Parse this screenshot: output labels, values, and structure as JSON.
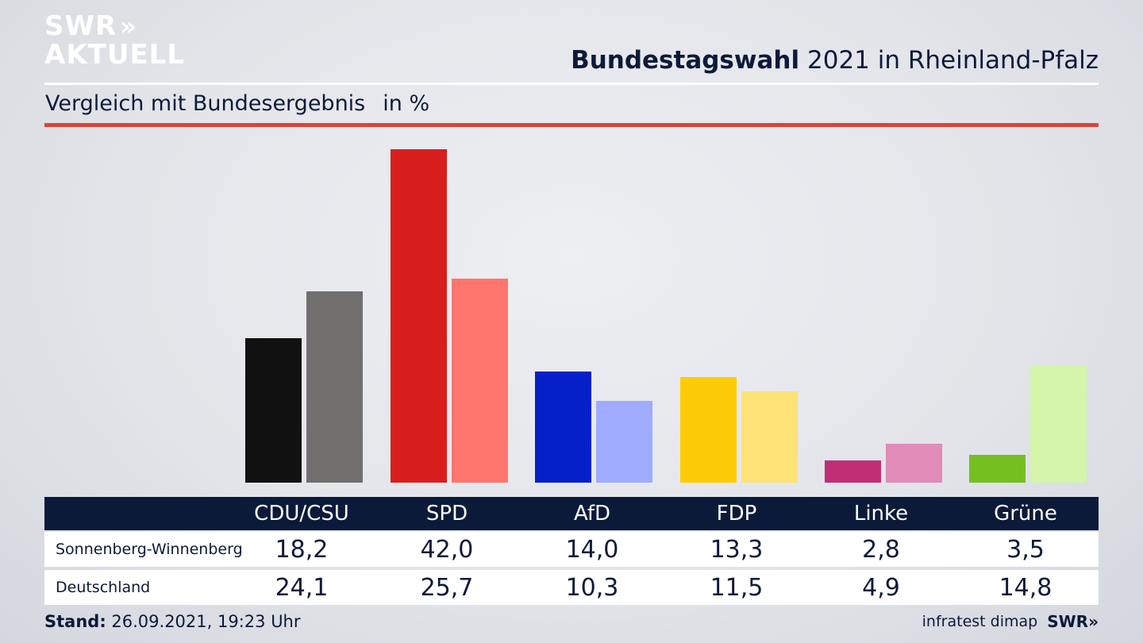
{
  "logo": {
    "line1": "SWR",
    "chevrons": "»",
    "line2": "AKTUELL"
  },
  "header": {
    "title_bold": "Bundestagswahl",
    "title_rest": "2021 in Rheinland-Pfalz"
  },
  "subtitle": {
    "text": "Vergleich mit Bundesergebnis",
    "unit": "in %"
  },
  "colors": {
    "primary": [
      "#111111",
      "#d91e1e",
      "#0520c9",
      "#fdcc07",
      "#c12e76",
      "#76bf21"
    ],
    "secondary": [
      "#716f6d",
      "#ff766f",
      "#9eabff",
      "#fde276",
      "#e08bb8",
      "#d4f5aa"
    ],
    "table_header": "#0c1a3a",
    "accent_rule": "#d9453a"
  },
  "chart_data": {
    "type": "bar",
    "title": "Bundestagswahl 2021 in Rheinland-Pfalz",
    "subtitle": "Vergleich mit Bundesergebnis",
    "ylabel": "in %",
    "categories": [
      "CDU/CSU",
      "SPD",
      "AfD",
      "FDP",
      "Linke",
      "Grüne"
    ],
    "series": [
      {
        "name": "Sonnenberg-Winnenberg",
        "values": [
          18.2,
          42.0,
          14.0,
          13.3,
          2.8,
          3.5
        ]
      },
      {
        "name": "Deutschland",
        "values": [
          24.1,
          25.7,
          10.3,
          11.5,
          4.9,
          14.8
        ]
      }
    ],
    "ylim": [
      0,
      42.0
    ],
    "grid": false,
    "legend": "table-below"
  },
  "table": {
    "headers": [
      "CDU/CSU",
      "SPD",
      "AfD",
      "FDP",
      "Linke",
      "Grüne"
    ],
    "rows": [
      {
        "label": "Sonnenberg-Winnenberg",
        "values": [
          "18,2",
          "42,0",
          "14,0",
          "13,3",
          "2,8",
          "3,5"
        ]
      },
      {
        "label": "Deutschland",
        "values": [
          "24,1",
          "25,7",
          "10,3",
          "11,5",
          "4,9",
          "14,8"
        ]
      }
    ]
  },
  "footer": {
    "stand_label": "Stand:",
    "stand_value": "26.09.2021, 19:23 Uhr",
    "source": "infratest dimap",
    "brand": "SWR»"
  }
}
